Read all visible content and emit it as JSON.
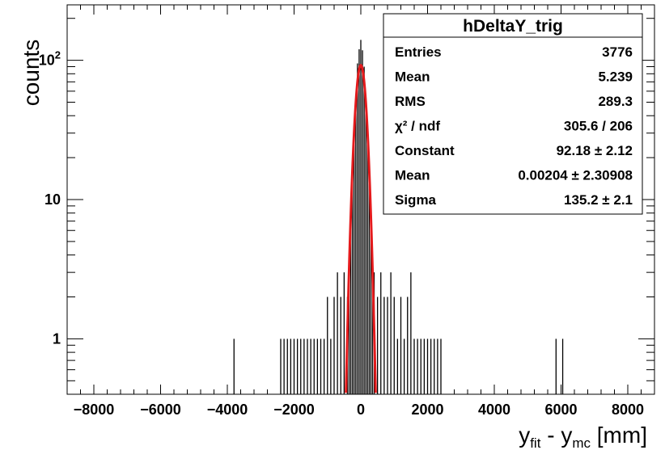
{
  "chart_data": {
    "type": "bar",
    "histogram": "hDeltaY_trig",
    "xlabel_main": "y",
    "xlabel_sub1": "fit",
    "xlabel_mid": " - y",
    "xlabel_sub2": "mc",
    "xlabel_unit": " [mm]",
    "ylabel": "counts",
    "xlim": [
      -8800,
      8800
    ],
    "ylim": [
      0.4,
      250
    ],
    "y_scale": "log",
    "x_ticks": [
      -8000,
      -6000,
      -4000,
      -2000,
      0,
      2000,
      4000,
      6000,
      8000
    ],
    "x_tick_labels": [
      "−8000",
      "−6000",
      "−4000",
      "−2000",
      "0",
      "2000",
      "4000",
      "6000",
      "8000"
    ],
    "y_tick_labels": [
      {
        "value": 1,
        "base": "1",
        "exp": ""
      },
      {
        "value": 10,
        "base": "10",
        "exp": ""
      },
      {
        "value": 100,
        "base": "10",
        "exp": "2"
      }
    ],
    "grid": false,
    "series": [
      {
        "x": [
          -3800,
          -2400,
          -2300,
          -2200,
          -2100,
          -2000,
          -1900,
          -1800,
          -1700,
          -1600,
          -1500,
          -1400,
          -1300,
          -1200,
          -1100,
          -1000,
          -900,
          -800,
          -700,
          -600,
          -500,
          -400,
          -350,
          -300,
          -250,
          -200,
          -150,
          -100,
          -50,
          0,
          50,
          100,
          150,
          200,
          250,
          300,
          350,
          400,
          500,
          600,
          700,
          800,
          900,
          1000,
          1100,
          1200,
          1300,
          1400,
          1500,
          1600,
          1700,
          1800,
          1900,
          2000,
          2100,
          2200,
          2300,
          2400,
          5850,
          6050
        ],
        "values": [
          1,
          1,
          1,
          1,
          1,
          1,
          1,
          1,
          1,
          1,
          1,
          1,
          1,
          1,
          1,
          2,
          1,
          2,
          3,
          2,
          3,
          2,
          4,
          8,
          15,
          28,
          55,
          95,
          120,
          140,
          118,
          90,
          50,
          26,
          13,
          8,
          4,
          3,
          2,
          3,
          2,
          2,
          3,
          2,
          1,
          2,
          1,
          2,
          3,
          1,
          1,
          1,
          1,
          1,
          1,
          1,
          1,
          1,
          1,
          1
        ]
      },
      {
        "name": "fit",
        "type": "gaussian",
        "constant": 92.18,
        "mean": 0.00204,
        "sigma": 135.2
      }
    ],
    "colors": {
      "histogram": "#000000",
      "fit": "#e41a1c"
    }
  },
  "stats": {
    "title": "hDeltaY_trig",
    "rows": [
      {
        "label": "Entries",
        "value": "3776"
      },
      {
        "label": "Mean",
        "value": "5.239"
      },
      {
        "label": "RMS",
        "value": "289.3"
      },
      {
        "label": "χ² / ndf",
        "value": "305.6 / 206"
      },
      {
        "label": "Constant",
        "value": "92.18 ± 2.12"
      },
      {
        "label": "Mean",
        "value": "0.00204 ± 2.30908"
      },
      {
        "label": "Sigma",
        "value": "135.2 ± 2.1"
      }
    ]
  }
}
